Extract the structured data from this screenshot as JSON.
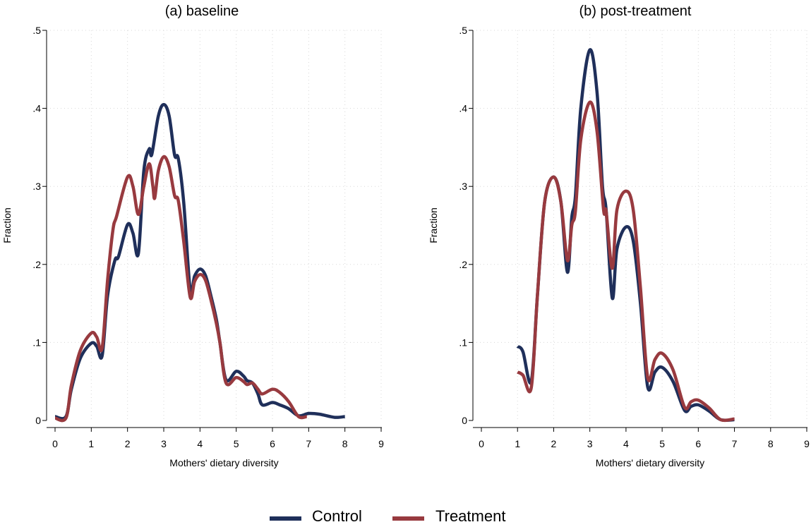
{
  "chart_data": [
    {
      "type": "line",
      "title": "(a) baseline",
      "xlabel": "Mothers' dietary diversity",
      "ylabel": "Fraction",
      "xlim": [
        0,
        9
      ],
      "ylim": [
        0,
        0.5
      ],
      "xticks": [
        0,
        1,
        2,
        3,
        4,
        5,
        6,
        7,
        8,
        9
      ],
      "xtick_labels": [
        "0",
        "1",
        "2",
        "3",
        "4",
        "5",
        "6",
        "7",
        "8",
        "9"
      ],
      "yticks": [
        0,
        0.1,
        0.2,
        0.3,
        0.4,
        0.5
      ],
      "ytick_labels": [
        "0",
        ".1",
        ".2",
        ".3",
        ".4",
        ".5"
      ],
      "grid": true,
      "series": [
        {
          "name": "Control",
          "color": "#1f2f5a",
          "points": [
            [
              0,
              0.005
            ],
            [
              0.3,
              0.005
            ],
            [
              0.45,
              0.04
            ],
            [
              0.7,
              0.08
            ],
            [
              1,
              0.099
            ],
            [
              1.15,
              0.095
            ],
            [
              1.3,
              0.083
            ],
            [
              1.45,
              0.16
            ],
            [
              1.65,
              0.205
            ],
            [
              1.75,
              0.21
            ],
            [
              2,
              0.251
            ],
            [
              2.15,
              0.24
            ],
            [
              2.3,
              0.214
            ],
            [
              2.45,
              0.32
            ],
            [
              2.6,
              0.348
            ],
            [
              2.67,
              0.341
            ],
            [
              2.85,
              0.39
            ],
            [
              3,
              0.405
            ],
            [
              3.15,
              0.39
            ],
            [
              3.3,
              0.34
            ],
            [
              3.4,
              0.336
            ],
            [
              3.55,
              0.28
            ],
            [
              3.73,
              0.167
            ],
            [
              3.85,
              0.185
            ],
            [
              4,
              0.194
            ],
            [
              4.15,
              0.186
            ],
            [
              4.3,
              0.16
            ],
            [
              4.45,
              0.13
            ],
            [
              4.55,
              0.1
            ],
            [
              4.72,
              0.052
            ],
            [
              5,
              0.063
            ],
            [
              5.2,
              0.057
            ],
            [
              5.3,
              0.051
            ],
            [
              5.45,
              0.048
            ],
            [
              5.6,
              0.034
            ],
            [
              5.72,
              0.02
            ],
            [
              6,
              0.023
            ],
            [
              6.2,
              0.02
            ],
            [
              6.45,
              0.015
            ],
            [
              6.72,
              0.006
            ],
            [
              7,
              0.009
            ],
            [
              7.3,
              0.008
            ],
            [
              7.72,
              0.004
            ],
            [
              8,
              0.005
            ]
          ]
        },
        {
          "name": "Treatment",
          "color": "#983a3f",
          "points": [
            [
              0,
              0.003
            ],
            [
              0.3,
              0.003
            ],
            [
              0.45,
              0.045
            ],
            [
              0.7,
              0.09
            ],
            [
              1,
              0.112
            ],
            [
              1.15,
              0.107
            ],
            [
              1.3,
              0.093
            ],
            [
              1.45,
              0.18
            ],
            [
              1.6,
              0.245
            ],
            [
              1.7,
              0.262
            ],
            [
              2,
              0.312
            ],
            [
              2.15,
              0.3
            ],
            [
              2.3,
              0.264
            ],
            [
              2.45,
              0.3
            ],
            [
              2.6,
              0.329
            ],
            [
              2.7,
              0.3
            ],
            [
              2.75,
              0.285
            ],
            [
              2.85,
              0.32
            ],
            [
              3,
              0.338
            ],
            [
              3.15,
              0.325
            ],
            [
              3.3,
              0.288
            ],
            [
              3.4,
              0.282
            ],
            [
              3.55,
              0.23
            ],
            [
              3.73,
              0.158
            ],
            [
              3.85,
              0.178
            ],
            [
              4,
              0.187
            ],
            [
              4.15,
              0.18
            ],
            [
              4.3,
              0.155
            ],
            [
              4.45,
              0.125
            ],
            [
              4.55,
              0.1
            ],
            [
              4.72,
              0.048
            ],
            [
              5,
              0.055
            ],
            [
              5.2,
              0.05
            ],
            [
              5.3,
              0.046
            ],
            [
              5.45,
              0.048
            ],
            [
              5.6,
              0.04
            ],
            [
              5.72,
              0.034
            ],
            [
              6,
              0.04
            ],
            [
              6.2,
              0.036
            ],
            [
              6.45,
              0.024
            ],
            [
              6.72,
              0.005
            ],
            [
              6.95,
              0.005
            ]
          ]
        }
      ]
    },
    {
      "type": "line",
      "title": "(b) post-treatment",
      "xlabel": "Mothers' dietary diversity",
      "ylabel": "Fraction",
      "xlim": [
        0,
        9
      ],
      "ylim": [
        0,
        0.5
      ],
      "xticks": [
        0,
        1,
        2,
        3,
        4,
        5,
        6,
        7,
        8,
        9
      ],
      "xtick_labels": [
        "0",
        "1",
        "2",
        "3",
        "4",
        "5",
        "6",
        "7",
        "8",
        "9"
      ],
      "yticks": [
        0,
        0.1,
        0.2,
        0.3,
        0.4,
        0.5
      ],
      "ytick_labels": [
        "0",
        ".1",
        ".2",
        ".3",
        ".4",
        ".5"
      ],
      "grid": true,
      "series": [
        {
          "name": "Control",
          "color": "#1f2f5a",
          "points": [
            [
              1,
              0.095
            ],
            [
              1.15,
              0.088
            ],
            [
              1.38,
              0.05
            ],
            [
              1.55,
              0.16
            ],
            [
              1.75,
              0.28
            ],
            [
              2,
              0.312
            ],
            [
              2.2,
              0.28
            ],
            [
              2.38,
              0.19
            ],
            [
              2.5,
              0.26
            ],
            [
              2.6,
              0.287
            ],
            [
              2.75,
              0.4
            ],
            [
              3,
              0.475
            ],
            [
              3.2,
              0.42
            ],
            [
              3.35,
              0.3
            ],
            [
              3.45,
              0.27
            ],
            [
              3.62,
              0.157
            ],
            [
              3.75,
              0.22
            ],
            [
              4,
              0.248
            ],
            [
              4.2,
              0.23
            ],
            [
              4.4,
              0.15
            ],
            [
              4.6,
              0.043
            ],
            [
              4.8,
              0.062
            ],
            [
              5,
              0.068
            ],
            [
              5.3,
              0.05
            ],
            [
              5.62,
              0.013
            ],
            [
              5.8,
              0.018
            ],
            [
              6,
              0.02
            ],
            [
              6.3,
              0.012
            ],
            [
              6.62,
              0.001
            ],
            [
              7,
              0.001
            ]
          ]
        },
        {
          "name": "Treatment",
          "color": "#983a3f",
          "points": [
            [
              1,
              0.062
            ],
            [
              1.15,
              0.058
            ],
            [
              1.38,
              0.042
            ],
            [
              1.55,
              0.16
            ],
            [
              1.75,
              0.28
            ],
            [
              2,
              0.312
            ],
            [
              2.2,
              0.28
            ],
            [
              2.38,
              0.205
            ],
            [
              2.5,
              0.25
            ],
            [
              2.6,
              0.268
            ],
            [
              2.75,
              0.36
            ],
            [
              3,
              0.408
            ],
            [
              3.2,
              0.37
            ],
            [
              3.38,
              0.27
            ],
            [
              3.45,
              0.268
            ],
            [
              3.62,
              0.195
            ],
            [
              3.75,
              0.27
            ],
            [
              4,
              0.294
            ],
            [
              4.2,
              0.27
            ],
            [
              4.4,
              0.17
            ],
            [
              4.6,
              0.055
            ],
            [
              4.8,
              0.078
            ],
            [
              5,
              0.086
            ],
            [
              5.3,
              0.065
            ],
            [
              5.62,
              0.017
            ],
            [
              5.8,
              0.024
            ],
            [
              6,
              0.026
            ],
            [
              6.3,
              0.016
            ],
            [
              6.62,
              0.001
            ],
            [
              7,
              0.002
            ]
          ]
        }
      ]
    }
  ],
  "legend": {
    "items": [
      {
        "label": "Control",
        "color": "#1f2f5a"
      },
      {
        "label": "Treatment",
        "color": "#983a3f"
      }
    ]
  }
}
